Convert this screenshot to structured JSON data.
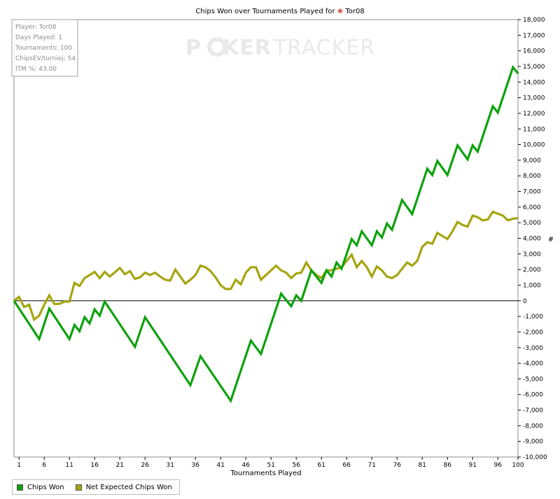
{
  "chart_data": {
    "type": "line",
    "title": "Chips Won over Tournaments Played for",
    "player_name": "Tor08",
    "xlabel": "Tournaments Played",
    "ylabel": "#",
    "xlim": [
      0,
      100
    ],
    "ylim": [
      -10000,
      18000
    ],
    "x_ticks": [
      1,
      6,
      11,
      16,
      21,
      26,
      31,
      36,
      41,
      46,
      51,
      56,
      61,
      66,
      71,
      76,
      81,
      86,
      91,
      96,
      100
    ],
    "y_ticks": [
      -10000,
      -9000,
      -8000,
      -7000,
      -6000,
      -5000,
      -4000,
      -3000,
      -2000,
      -1000,
      0,
      1000,
      2000,
      3000,
      4000,
      5000,
      6000,
      7000,
      8000,
      9000,
      10000,
      11000,
      12000,
      13000,
      14000,
      15000,
      16000,
      17000,
      18000
    ],
    "y_tick_labels": [
      "-10,000",
      "-9,000",
      "-8,000",
      "-7,000",
      "-6,000",
      "-5,000",
      "-4,000",
      "-3,000",
      "-2,000",
      "-1,000",
      "0",
      "1,000",
      "2,000",
      "3,000",
      "4,000",
      "5,000",
      "6,000",
      "7,000",
      "8,000",
      "9,000",
      "10,000",
      "11,000",
      "12,000",
      "13,000",
      "14,000",
      "15,000",
      "16,000",
      "17,000",
      "18,000"
    ],
    "grid": false,
    "legend_position": "bottom-left",
    "series": [
      {
        "name": "Chips Won",
        "color": "#0da10d",
        "points": [
          [
            0,
            0
          ],
          [
            5,
            -2450
          ],
          [
            7,
            -500
          ],
          [
            11,
            -2450
          ],
          [
            12,
            -1550
          ],
          [
            13,
            -1950
          ],
          [
            14,
            -1050
          ],
          [
            15,
            -1450
          ],
          [
            16,
            -550
          ],
          [
            17,
            -950
          ],
          [
            18,
            -50
          ],
          [
            24,
            -2950
          ],
          [
            26,
            -1050
          ],
          [
            35,
            -5400
          ],
          [
            37,
            -3550
          ],
          [
            43,
            -6400
          ],
          [
            47,
            -2550
          ],
          [
            49,
            -3400
          ],
          [
            53,
            450
          ],
          [
            55,
            -350
          ],
          [
            56,
            350
          ],
          [
            57,
            0
          ],
          [
            59,
            1950
          ],
          [
            61,
            1150
          ],
          [
            62,
            1950
          ],
          [
            63,
            1550
          ],
          [
            64,
            2450
          ],
          [
            65,
            2050
          ],
          [
            67,
            3950
          ],
          [
            68,
            3550
          ],
          [
            69,
            4450
          ],
          [
            71,
            3550
          ],
          [
            72,
            4450
          ],
          [
            73,
            4050
          ],
          [
            74,
            4950
          ],
          [
            75,
            4550
          ],
          [
            77,
            6450
          ],
          [
            79,
            5550
          ],
          [
            82,
            8450
          ],
          [
            83,
            8050
          ],
          [
            84,
            8950
          ],
          [
            86,
            8050
          ],
          [
            88,
            9950
          ],
          [
            90,
            9050
          ],
          [
            91,
            9950
          ],
          [
            92,
            9550
          ],
          [
            95,
            12450
          ],
          [
            96,
            12050
          ],
          [
            99,
            14950
          ],
          [
            100,
            14550
          ]
        ]
      },
      {
        "name": "Net Expected Chips Won",
        "color": "#a5a511",
        "points": [
          [
            0,
            0
          ],
          [
            1,
            250
          ],
          [
            2,
            -400
          ],
          [
            3,
            -250
          ],
          [
            4,
            -1200
          ],
          [
            5,
            -950
          ],
          [
            6,
            -250
          ],
          [
            7,
            350
          ],
          [
            8,
            -200
          ],
          [
            9,
            -200
          ],
          [
            10,
            -50
          ],
          [
            11,
            -50
          ],
          [
            12,
            1150
          ],
          [
            13,
            950
          ],
          [
            14,
            1450
          ],
          [
            15,
            1650
          ],
          [
            16,
            1850
          ],
          [
            17,
            1450
          ],
          [
            18,
            1850
          ],
          [
            19,
            1550
          ],
          [
            21,
            2100
          ],
          [
            22,
            1700
          ],
          [
            23,
            1900
          ],
          [
            24,
            1400
          ],
          [
            25,
            1500
          ],
          [
            26,
            1800
          ],
          [
            27,
            1650
          ],
          [
            28,
            1800
          ],
          [
            29,
            1550
          ],
          [
            30,
            1350
          ],
          [
            31,
            1300
          ],
          [
            32,
            2000
          ],
          [
            33,
            1550
          ],
          [
            34,
            1100
          ],
          [
            35,
            1350
          ],
          [
            36,
            1650
          ],
          [
            37,
            2250
          ],
          [
            38,
            2150
          ],
          [
            39,
            1900
          ],
          [
            40,
            1500
          ],
          [
            41,
            1000
          ],
          [
            42,
            750
          ],
          [
            43,
            750
          ],
          [
            44,
            1350
          ],
          [
            45,
            1050
          ],
          [
            46,
            1800
          ],
          [
            47,
            2150
          ],
          [
            48,
            2150
          ],
          [
            49,
            1350
          ],
          [
            51,
            1950
          ],
          [
            52,
            2250
          ],
          [
            53,
            1950
          ],
          [
            54,
            1800
          ],
          [
            55,
            1450
          ],
          [
            56,
            1750
          ],
          [
            57,
            1800
          ],
          [
            58,
            2450
          ],
          [
            59,
            1950
          ],
          [
            60,
            1650
          ],
          [
            61,
            1450
          ],
          [
            62,
            1950
          ],
          [
            63,
            1950
          ],
          [
            64,
            2050
          ],
          [
            65,
            2150
          ],
          [
            67,
            2950
          ],
          [
            68,
            2150
          ],
          [
            69,
            2550
          ],
          [
            70,
            2150
          ],
          [
            71,
            1550
          ],
          [
            72,
            2200
          ],
          [
            73,
            1950
          ],
          [
            74,
            1550
          ],
          [
            75,
            1450
          ],
          [
            76,
            1650
          ],
          [
            78,
            2450
          ],
          [
            79,
            2250
          ],
          [
            80,
            2550
          ],
          [
            81,
            3450
          ],
          [
            82,
            3750
          ],
          [
            83,
            3650
          ],
          [
            84,
            4350
          ],
          [
            85,
            4150
          ],
          [
            86,
            3950
          ],
          [
            87,
            4450
          ],
          [
            88,
            5050
          ],
          [
            89,
            4850
          ],
          [
            90,
            4750
          ],
          [
            91,
            5450
          ],
          [
            92,
            5350
          ],
          [
            93,
            5150
          ],
          [
            94,
            5200
          ],
          [
            95,
            5700
          ],
          [
            97,
            5450
          ],
          [
            98,
            5150
          ],
          [
            99,
            5250
          ],
          [
            100,
            5300
          ]
        ]
      }
    ]
  },
  "info_box": {
    "player": "Player: Tor08",
    "days_played": "Days Played: 1",
    "tournaments": "Tournaments: 100",
    "chips_ev": "ChipsEV/turniej: 54",
    "itm": "ITM %: 43.00"
  },
  "watermark": {
    "prefix": "P",
    "middle": "KER",
    "suffix": "TRACKER"
  }
}
